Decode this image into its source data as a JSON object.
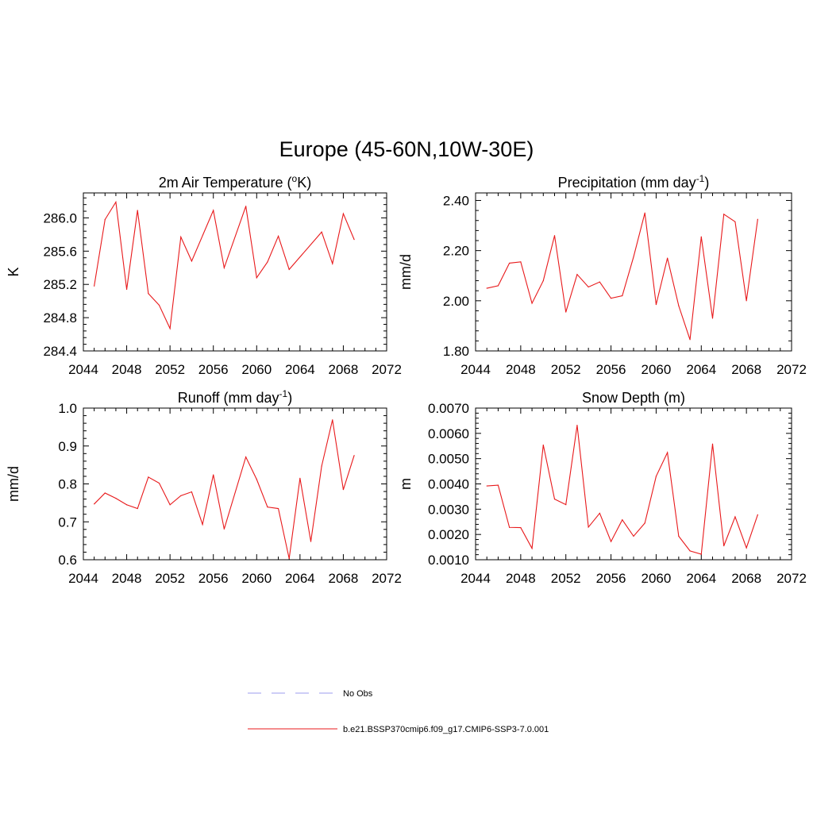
{
  "title": "Europe (45-60N,10W-30E)",
  "series_color": "#e8191b",
  "obs_color": "#9b9bef",
  "legend": [
    {
      "label": "No Obs",
      "style": "dashed",
      "color": "#9b9bef"
    },
    {
      "label": "b.e21.BSSP370cmip6.f09_g17.CMIP6-SSP3-7.0.001",
      "style": "solid",
      "color": "#e8191b"
    }
  ],
  "chart_data": [
    {
      "type": "line",
      "title": "2m Air Temperature (",
      "title_sup": "o",
      "title_after": "K)",
      "xlabel": "",
      "ylabel": "K",
      "xlim": [
        2044,
        2072
      ],
      "ylim": [
        284.4,
        286.3
      ],
      "x_ticks": [
        2044,
        2048,
        2052,
        2056,
        2060,
        2064,
        2068,
        2072
      ],
      "y_ticks": [
        284.4,
        284.8,
        285.2,
        285.6,
        286.0
      ],
      "y_tick_labels": [
        "284.4",
        "284.8",
        "285.2",
        "285.6",
        "286.0"
      ],
      "x": [
        2045,
        2046,
        2047,
        2048,
        2049,
        2050,
        2051,
        2052,
        2053,
        2054,
        2056,
        2057,
        2059,
        2060,
        2061,
        2062,
        2063,
        2066,
        2067,
        2068,
        2069
      ],
      "values": [
        285.18,
        285.98,
        286.19,
        285.14,
        286.09,
        285.09,
        284.95,
        284.67,
        285.77,
        285.48,
        286.09,
        285.4,
        286.14,
        285.28,
        285.47,
        285.78,
        285.38,
        285.83,
        285.45,
        286.05,
        285.74
      ]
    },
    {
      "type": "line",
      "title": "Precipitation (mm day",
      "title_sup": "-1",
      "title_after": ")",
      "xlabel": "",
      "ylabel": "mm/d",
      "xlim": [
        2044,
        2072
      ],
      "ylim": [
        1.8,
        2.43
      ],
      "x_ticks": [
        2044,
        2048,
        2052,
        2056,
        2060,
        2064,
        2068,
        2072
      ],
      "y_ticks": [
        1.8,
        2.0,
        2.2,
        2.4
      ],
      "y_tick_labels": [
        "1.80",
        "2.00",
        "2.20",
        "2.40"
      ],
      "x": [
        2045,
        2046,
        2047,
        2048,
        2049,
        2050,
        2051,
        2052,
        2053,
        2054,
        2055,
        2056,
        2057,
        2058,
        2059,
        2060,
        2061,
        2062,
        2063,
        2064,
        2065,
        2066,
        2067,
        2068,
        2069
      ],
      "values": [
        2.05,
        2.06,
        2.15,
        2.155,
        1.99,
        2.08,
        2.26,
        1.955,
        2.105,
        2.055,
        2.075,
        2.01,
        2.02,
        2.175,
        2.35,
        1.985,
        2.17,
        1.98,
        1.845,
        2.255,
        1.93,
        2.345,
        2.315,
        2.0,
        2.325
      ]
    },
    {
      "type": "line",
      "title": "Runoff (mm day",
      "title_sup": "-1",
      "title_after": ")",
      "xlabel": "",
      "ylabel": "mm/d",
      "xlim": [
        2044,
        2072
      ],
      "ylim": [
        0.6,
        1.0
      ],
      "x_ticks": [
        2044,
        2048,
        2052,
        2056,
        2060,
        2064,
        2068,
        2072
      ],
      "y_ticks": [
        0.6,
        0.7,
        0.8,
        0.9,
        1.0
      ],
      "y_tick_labels": [
        "0.6",
        "0.7",
        "0.8",
        "0.9",
        "1.0"
      ],
      "x": [
        2045,
        2046,
        2047,
        2048,
        2049,
        2050,
        2051,
        2052,
        2053,
        2054,
        2055,
        2056,
        2057,
        2059,
        2060,
        2061,
        2062,
        2063,
        2064,
        2065,
        2066,
        2067,
        2068,
        2069
      ],
      "values": [
        0.747,
        0.776,
        0.762,
        0.745,
        0.735,
        0.818,
        0.802,
        0.745,
        0.769,
        0.779,
        0.693,
        0.824,
        0.681,
        0.871,
        0.812,
        0.739,
        0.735,
        0.603,
        0.815,
        0.648,
        0.847,
        0.969,
        0.785,
        0.875
      ]
    },
    {
      "type": "line",
      "title": "Snow Depth (m)",
      "title_sup": "",
      "title_after": "",
      "xlabel": "",
      "ylabel": "m",
      "xlim": [
        2044,
        2072
      ],
      "ylim": [
        0.001,
        0.007
      ],
      "x_ticks": [
        2044,
        2048,
        2052,
        2056,
        2060,
        2064,
        2068,
        2072
      ],
      "y_ticks": [
        0.001,
        0.002,
        0.003,
        0.004,
        0.005,
        0.006,
        0.007
      ],
      "y_tick_labels": [
        "0.0010",
        "0.0020",
        "0.0030",
        "0.0040",
        "0.0050",
        "0.0060",
        "0.0070"
      ],
      "x": [
        2045,
        2046,
        2047,
        2048,
        2049,
        2050,
        2051,
        2052,
        2053,
        2054,
        2055,
        2056,
        2057,
        2058,
        2059,
        2060,
        2061,
        2062,
        2063,
        2064,
        2065,
        2066,
        2067,
        2068,
        2069
      ],
      "values": [
        0.00392,
        0.00395,
        0.00228,
        0.00227,
        0.00145,
        0.00554,
        0.0034,
        0.00318,
        0.00632,
        0.00229,
        0.00284,
        0.00172,
        0.00258,
        0.00193,
        0.00245,
        0.0043,
        0.00524,
        0.00193,
        0.00135,
        0.00122,
        0.00558,
        0.00155,
        0.0027,
        0.00147,
        0.00278
      ]
    }
  ]
}
